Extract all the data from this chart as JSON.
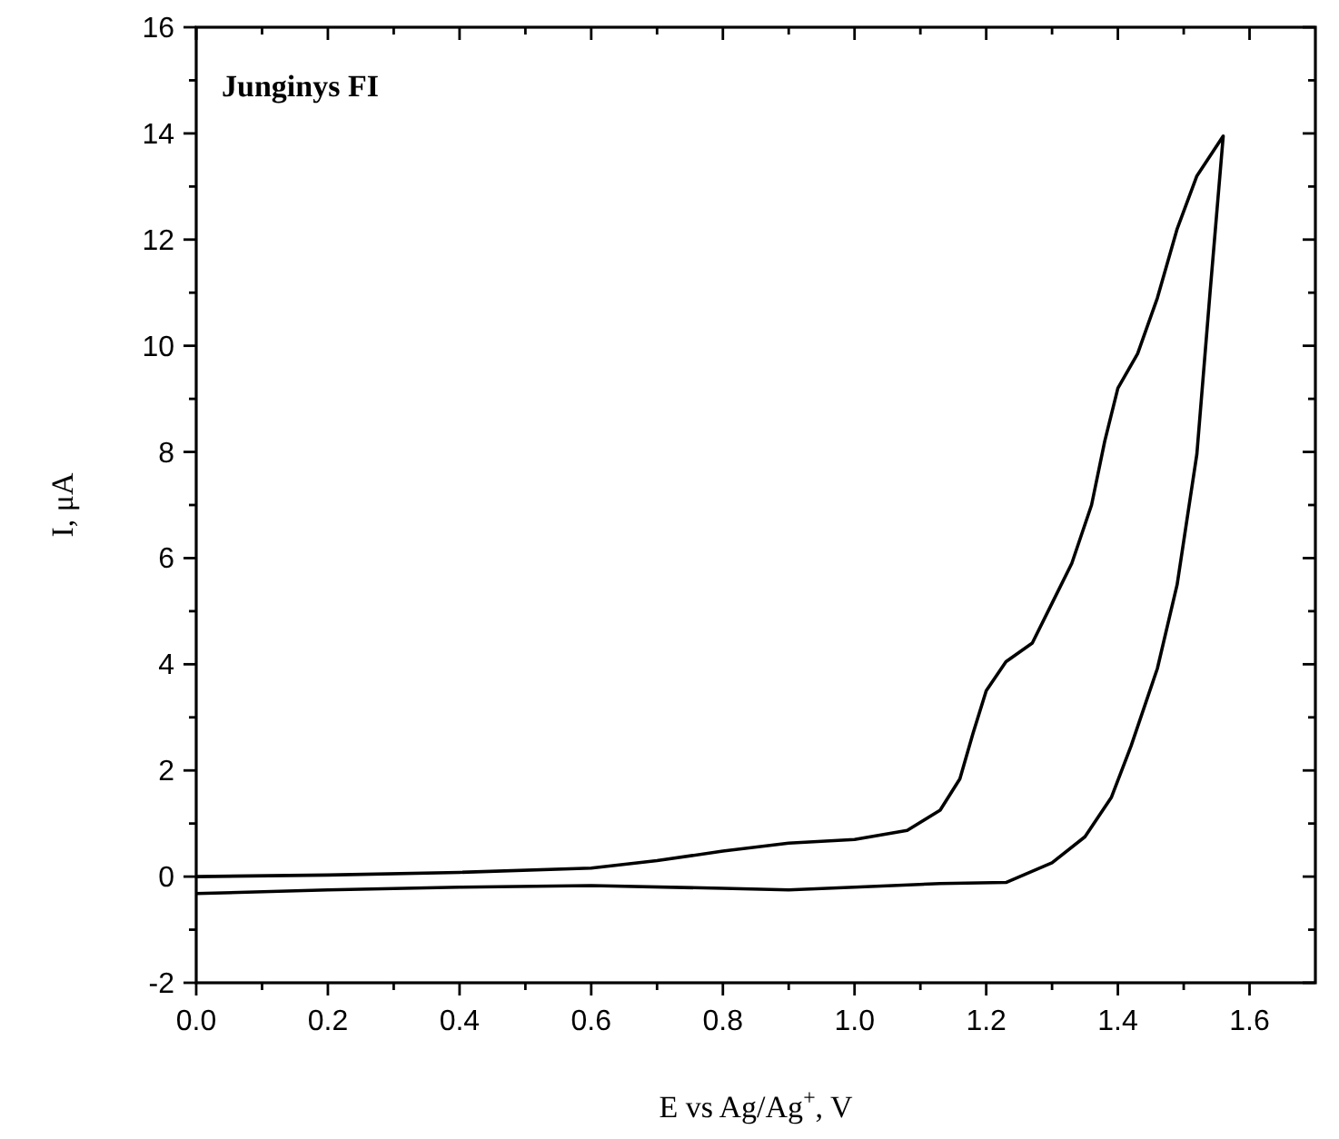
{
  "chart_data": {
    "type": "line",
    "title": "Junginys FI",
    "xlabel": "E vs Ag/Ag$^{+}$, V",
    "ylabel": "I, μA",
    "xlim": [
      0,
      1.7
    ],
    "ylim": [
      -2,
      16
    ],
    "xticks": [
      {
        "value": 0,
        "label": "0.0"
      },
      {
        "value": 0.1,
        "label": null
      },
      {
        "value": 0.2,
        "label": "0.2"
      },
      {
        "value": 0.3,
        "label": null
      },
      {
        "value": 0.4,
        "label": "0.4"
      },
      {
        "value": 0.5,
        "label": null
      },
      {
        "value": 0.6,
        "label": "0.6"
      },
      {
        "value": 0.7,
        "label": null
      },
      {
        "value": 0.8,
        "label": "0.8"
      },
      {
        "value": 0.9,
        "label": null
      },
      {
        "value": 1.0,
        "label": "1.0"
      },
      {
        "value": 1.1,
        "label": null
      },
      {
        "value": 1.2,
        "label": "1.2"
      },
      {
        "value": 1.3,
        "label": null
      },
      {
        "value": 1.4,
        "label": "1.4"
      },
      {
        "value": 1.5,
        "label": null
      },
      {
        "value": 1.6,
        "label": "1.6"
      }
    ],
    "yticks": [
      -2,
      {
        "value": -1,
        "label": null
      },
      0,
      {
        "value": 1,
        "label": null
      },
      2,
      {
        "value": 3,
        "label": null
      },
      4,
      {
        "value": 5,
        "label": null
      },
      6,
      {
        "value": 7,
        "label": null
      },
      8,
      {
        "value": 9,
        "label": null
      },
      10,
      {
        "value": 11,
        "label": null
      },
      12,
      {
        "value": 13,
        "label": null
      },
      14,
      {
        "value": 15,
        "label": null
      },
      16
    ],
    "grid": false,
    "line_style": "solid",
    "series": [
      {
        "color": "#000000",
        "x": [
          0,
          0.2,
          0.4,
          0.6,
          0.7,
          0.8,
          0.9,
          1.0,
          1.08,
          1.13,
          1.16,
          1.18,
          1.2,
          1.23,
          1.27,
          1.3,
          1.33,
          1.36,
          1.38,
          1.4,
          1.43,
          1.46,
          1.49,
          1.52,
          1.56,
          1.56,
          1.54,
          1.52,
          1.49,
          1.46,
          1.42,
          1.39,
          1.35,
          1.3,
          1.23,
          1.13,
          1.0,
          0.9,
          0.8,
          0.6,
          0.4,
          0.2,
          0
        ],
        "values": [
          0,
          0.03,
          0.08,
          0.16,
          0.3,
          0.48,
          0.63,
          0.7,
          0.87,
          1.25,
          1.84,
          2.7,
          3.5,
          4.05,
          4.4,
          5.15,
          5.9,
          7.0,
          8.2,
          9.2,
          9.85,
          10.9,
          12.2,
          13.2,
          13.95,
          13.95,
          11.0,
          7.96,
          5.5,
          3.92,
          2.46,
          1.49,
          0.75,
          0.26,
          -0.11,
          -0.13,
          -0.2,
          -0.25,
          -0.22,
          -0.17,
          -0.2,
          -0.25,
          -0.32
        ]
      }
    ]
  }
}
